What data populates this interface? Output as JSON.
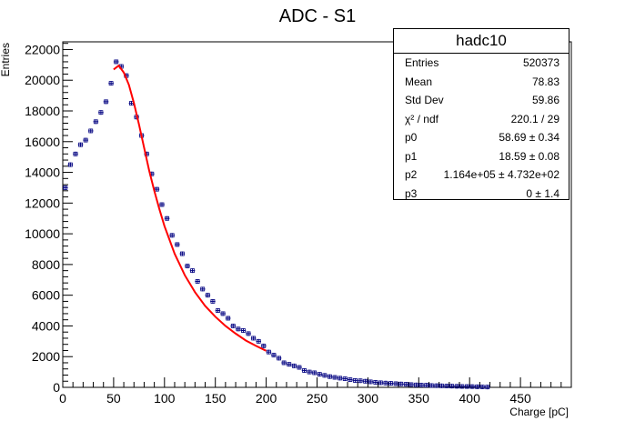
{
  "chart_data": {
    "type": "scatter",
    "title": "ADC - S1",
    "xlabel": "Charge [pC]",
    "ylabel": "Entries",
    "xlim": [
      0,
      500
    ],
    "ylim": [
      0,
      22500
    ],
    "xticks": [
      0,
      50,
      100,
      150,
      200,
      250,
      300,
      350,
      400,
      450
    ],
    "yticks": [
      0,
      2000,
      4000,
      6000,
      8000,
      10000,
      12000,
      14000,
      16000,
      18000,
      20000,
      22000
    ],
    "grid": false,
    "series": [
      {
        "name": "hadc10",
        "color": "#000080",
        "x": [
          2.5,
          7.5,
          12.5,
          17.5,
          22.5,
          27.5,
          32.5,
          37.5,
          42.5,
          47.5,
          52.5,
          57.5,
          62.5,
          67.5,
          72.5,
          77.5,
          82.5,
          87.5,
          92.5,
          97.5,
          102.5,
          107.5,
          112.5,
          117.5,
          122.5,
          127.5,
          132.5,
          137.5,
          142.5,
          147.5,
          152.5,
          157.5,
          162.5,
          167.5,
          172.5,
          177.5,
          182.5,
          187.5,
          192.5,
          197.5,
          202.5,
          207.5,
          212.5,
          217.5,
          222.5,
          227.5,
          232.5,
          237.5,
          242.5,
          247.5,
          252.5,
          257.5,
          262.5,
          267.5,
          272.5,
          277.5,
          282.5,
          287.5,
          292.5,
          297.5,
          302.5,
          307.5,
          312.5,
          317.5,
          322.5,
          327.5,
          332.5,
          337.5,
          342.5,
          347.5,
          352.5,
          357.5,
          362.5,
          367.5,
          372.5,
          377.5,
          382.5,
          387.5,
          392.5,
          397.5,
          402.5,
          407.5,
          412.5,
          417.5
        ],
        "y": [
          13000,
          14500,
          15200,
          15800,
          16100,
          16700,
          17300,
          17900,
          18600,
          19800,
          21200,
          20900,
          20300,
          18500,
          17600,
          16400,
          15200,
          13900,
          12900,
          11900,
          11000,
          9900,
          9300,
          8700,
          7900,
          7600,
          6900,
          6400,
          6000,
          5600,
          5000,
          4800,
          4500,
          4000,
          3800,
          3700,
          3500,
          3200,
          3000,
          2700,
          2300,
          2100,
          1900,
          1600,
          1500,
          1400,
          1300,
          1100,
          1000,
          950,
          850,
          780,
          700,
          650,
          600,
          560,
          500,
          450,
          430,
          400,
          360,
          330,
          300,
          280,
          260,
          240,
          220,
          200,
          180,
          160,
          150,
          140,
          120,
          110,
          100,
          90,
          80,
          70,
          60,
          55,
          50,
          40,
          30,
          20
        ]
      },
      {
        "type": "line",
        "color": "#ff0000",
        "x": [
          50,
          55,
          60,
          65,
          70,
          75,
          80,
          85,
          90,
          95,
          100,
          110,
          120,
          130,
          140,
          150,
          160,
          170,
          180,
          190,
          200
        ],
        "y": [
          20700,
          20950,
          20500,
          19700,
          18500,
          17100,
          15600,
          14100,
          12800,
          11600,
          10500,
          8700,
          7300,
          6200,
          5300,
          4600,
          4000,
          3500,
          3050,
          2700,
          2380
        ]
      }
    ],
    "stats": {
      "title": "hadc10",
      "rows": [
        {
          "key": "Entries",
          "value": "520373"
        },
        {
          "key": "Mean",
          "value": "78.83"
        },
        {
          "key": "Std Dev",
          "value": "59.86"
        },
        {
          "key": "χ² / ndf",
          "value": "220.1 / 29"
        },
        {
          "key": "p0",
          "value": "58.69 ± 0.34"
        },
        {
          "key": "p1",
          "value": "18.59 ± 0.08"
        },
        {
          "key": "p2",
          "value": "1.164e+05 ± 4.732e+02"
        },
        {
          "key": "p3",
          "value": "0 ± 1.4"
        }
      ]
    }
  }
}
